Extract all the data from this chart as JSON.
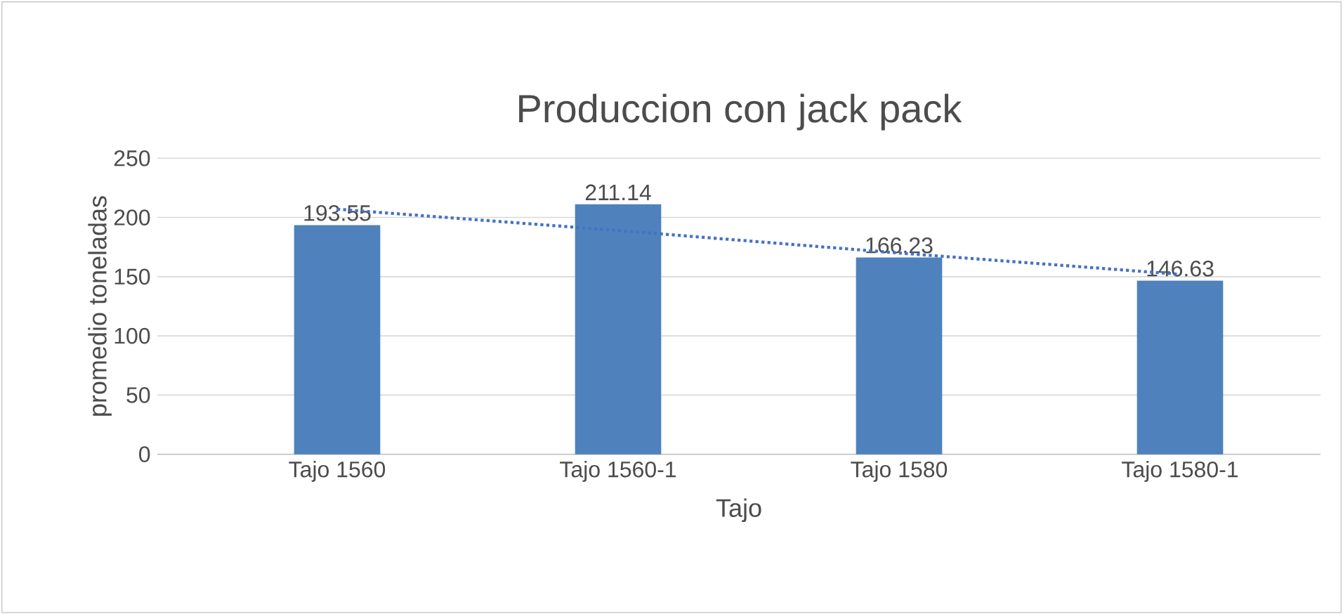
{
  "chart_data": {
    "type": "bar",
    "title": "Produccion con jack pack",
    "xlabel": "Tajo",
    "ylabel": "promedio toneladas",
    "categories": [
      "Tajo 1560",
      "Tajo 1560-1",
      "Tajo 1580",
      "Tajo 1580-1"
    ],
    "series": [
      {
        "color": "#4f81bd",
        "values": [
          193.55,
          211.14,
          166.23,
          146.63
        ],
        "value_labels": [
          "193.55",
          "211.14",
          "166.23",
          "146.63"
        ]
      },
      {
        "type": "line",
        "color": "#4472c4",
        "line_style": "dotted",
        "marker": "none",
        "values": [
          207,
          189,
          170,
          152
        ]
      }
    ],
    "ylim": [
      0,
      250
    ],
    "yticks": [
      0,
      50,
      100,
      150,
      200,
      250
    ],
    "grid": "y"
  }
}
